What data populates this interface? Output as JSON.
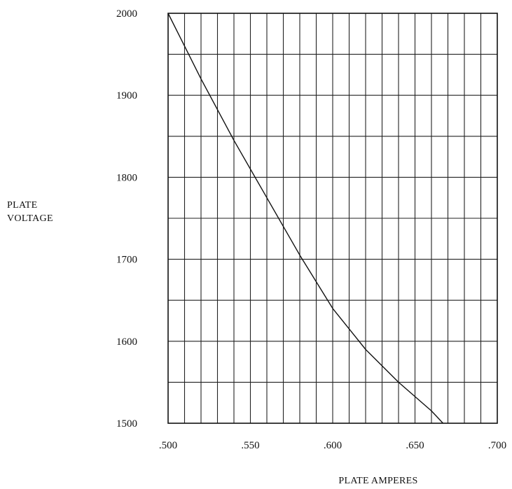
{
  "chart_data": {
    "type": "line",
    "title": "",
    "xlabel": "PLATE AMPERES",
    "ylabel_lines": [
      "PLATE",
      "VOLTAGE"
    ],
    "xlim": [
      0.5,
      0.7
    ],
    "ylim": [
      1500,
      2000
    ],
    "x_ticks": [
      0.5,
      0.55,
      0.6,
      0.65,
      0.7
    ],
    "x_tick_labels": [
      ".500",
      ".550",
      ".600",
      ".650",
      ".700"
    ],
    "y_ticks": [
      1500,
      1600,
      1700,
      1800,
      1900,
      2000
    ],
    "y_tick_labels": [
      "1500",
      "1600",
      "1700",
      "1800",
      "1900",
      "2000"
    ],
    "grid": true,
    "grid_x_step": 0.01,
    "grid_y_step": 50,
    "series": [
      {
        "x": [
          0.5,
          0.52,
          0.54,
          0.56,
          0.58,
          0.6,
          0.62,
          0.64,
          0.66,
          0.667
        ],
        "y": [
          2000,
          1920,
          1845,
          1775,
          1705,
          1640,
          1590,
          1550,
          1515,
          1500
        ]
      }
    ],
    "colors": {
      "line": "#111111",
      "grid": "#222222",
      "background": "#ffffff"
    }
  }
}
